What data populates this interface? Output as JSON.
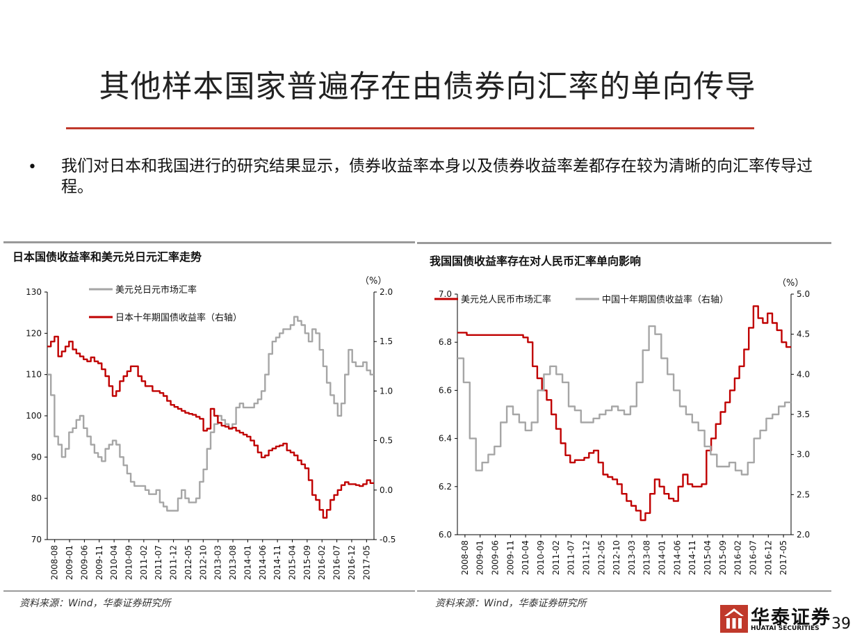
{
  "slide": {
    "title": "其他样本国家普遍存在由债券向汇率的单向传导",
    "bullet": "我们对日本和我国进行的研究结果显示，债券收益率本身以及债券收益率差都存在较为清晰的向汇率传导过程。",
    "bullet_mark": "•",
    "page_number": "39",
    "logo_name": "华泰证券",
    "logo_sub": "HUATAI SECURITIES",
    "accent_color": "#c0392b"
  },
  "charts": {
    "left": {
      "title": "日本国债收益率和美元兑日元汇率走势",
      "source": "资料来源：Wind，华泰证券研究所",
      "right_unit": "（%）"
    },
    "right": {
      "title": "我国国债收益率存在对人民币汇率单向影响",
      "source": "资料来源：Wind，华泰证券研究所",
      "right_unit": "（%）"
    }
  },
  "chart_data": [
    {
      "type": "line",
      "title": "日本国债收益率和美元兑日元汇率走势",
      "x_tick_labels": [
        "2008-08",
        "2009-01",
        "2009-06",
        "2009-11",
        "2010-04",
        "2010-09",
        "2011-02",
        "2011-07",
        "2011-12",
        "2012-05",
        "2012-10",
        "2013-03",
        "2013-08",
        "2014-01",
        "2014-06",
        "2014-11",
        "2015-04",
        "2015-09",
        "2016-02",
        "2016-07",
        "2016-12",
        "2017-05"
      ],
      "y_left": {
        "min": 70,
        "max": 130,
        "ticks": [
          70,
          80,
          90,
          100,
          110,
          120,
          130
        ]
      },
      "y_right": {
        "min": -0.5,
        "max": 2.0,
        "ticks": [
          "-0.5",
          "0.0",
          "0.5",
          "1.0",
          "1.5",
          "2.0"
        ],
        "label": "（%）"
      },
      "legend_placement": "top-left",
      "series": [
        {
          "name": "美元兑日元市场汇率",
          "axis": "left",
          "color": "#a6a6a6",
          "values": [
            110,
            105,
            95,
            93,
            90,
            92,
            96,
            97,
            99,
            100,
            97,
            95,
            93,
            91,
            90,
            89,
            92,
            93,
            94,
            93,
            90,
            88,
            86,
            84,
            83,
            83,
            83,
            82,
            81,
            81,
            82,
            79,
            78,
            77,
            77,
            77,
            80,
            82,
            80,
            79,
            79,
            80,
            84,
            87,
            92,
            96,
            98,
            100,
            99,
            98,
            97,
            98,
            102,
            103,
            102,
            102,
            102,
            103,
            104,
            106,
            110,
            115,
            118,
            119,
            120,
            121,
            121,
            122,
            124,
            123,
            122,
            120,
            118,
            121,
            120,
            116,
            112,
            108,
            105,
            103,
            100,
            103,
            110,
            116,
            113,
            112,
            112,
            113,
            111,
            110
          ]
        },
        {
          "name": "日本十年期国债收益率（右轴）",
          "axis": "right",
          "color": "#c00000",
          "values": [
            1.45,
            1.5,
            1.55,
            1.35,
            1.4,
            1.45,
            1.5,
            1.42,
            1.38,
            1.35,
            1.32,
            1.3,
            1.34,
            1.3,
            1.28,
            1.22,
            1.15,
            1.05,
            0.95,
            1.0,
            1.1,
            1.15,
            1.2,
            1.25,
            1.25,
            1.15,
            1.1,
            1.05,
            1.05,
            1.0,
            1.0,
            0.98,
            0.95,
            0.9,
            0.86,
            0.84,
            0.82,
            0.8,
            0.78,
            0.77,
            0.76,
            0.74,
            0.72,
            0.6,
            0.62,
            0.82,
            0.75,
            0.68,
            0.65,
            0.64,
            0.62,
            0.63,
            0.6,
            0.58,
            0.56,
            0.54,
            0.5,
            0.45,
            0.38,
            0.33,
            0.35,
            0.4,
            0.42,
            0.44,
            0.45,
            0.47,
            0.4,
            0.38,
            0.35,
            0.3,
            0.26,
            0.22,
            0.1,
            -0.05,
            -0.1,
            -0.2,
            -0.28,
            -0.2,
            -0.1,
            -0.05,
            0.0,
            0.05,
            0.08,
            0.06,
            0.06,
            0.05,
            0.04,
            0.06,
            0.1,
            0.07
          ]
        }
      ]
    },
    {
      "type": "line",
      "title": "我国国债收益率存在对人民币汇率单向影响",
      "x_tick_labels": [
        "2008-08",
        "2009-01",
        "2009-06",
        "2009-11",
        "2010-04",
        "2010-09",
        "2011-02",
        "2011-07",
        "2011-12",
        "2012-05",
        "2012-10",
        "2013-03",
        "2013-08",
        "2014-01",
        "2014-06",
        "2014-11",
        "2015-04",
        "2015-09",
        "2016-02",
        "2016-07",
        "2016-12",
        "2017-05"
      ],
      "y_left": {
        "min": 6.0,
        "max": 7.0,
        "ticks": [
          "6.0",
          "6.2",
          "6.4",
          "6.6",
          "6.8",
          "7.0"
        ]
      },
      "y_right": {
        "min": 2.0,
        "max": 5.0,
        "ticks": [
          "2.0",
          "2.5",
          "3.0",
          "3.5",
          "4.0",
          "4.5",
          "5.0"
        ],
        "label": "（%）"
      },
      "legend_placement": "top",
      "series": [
        {
          "name": "美元兑人民币市场汇率",
          "axis": "left",
          "color": "#c00000",
          "values": [
            6.84,
            6.84,
            6.83,
            6.83,
            6.83,
            6.83,
            6.83,
            6.83,
            6.83,
            6.83,
            6.83,
            6.83,
            6.83,
            6.83,
            6.82,
            6.8,
            6.7,
            6.65,
            6.6,
            6.56,
            6.5,
            6.44,
            6.38,
            6.33,
            6.3,
            6.31,
            6.31,
            6.32,
            6.34,
            6.35,
            6.3,
            6.25,
            6.24,
            6.23,
            6.21,
            6.17,
            6.14,
            6.12,
            6.1,
            6.06,
            6.09,
            6.17,
            6.23,
            6.2,
            6.17,
            6.15,
            6.14,
            6.2,
            6.25,
            6.21,
            6.2,
            6.2,
            6.21,
            6.35,
            6.4,
            6.46,
            6.51,
            6.55,
            6.6,
            6.65,
            6.7,
            6.77,
            6.86,
            6.95,
            6.9,
            6.88,
            6.92,
            6.88,
            6.85,
            6.8,
            6.78
          ]
        },
        {
          "name": "中国十年期国债收益率（右轴）",
          "axis": "right",
          "color": "#a6a6a6",
          "values": [
            4.2,
            3.9,
            3.2,
            2.8,
            2.9,
            3.0,
            3.1,
            3.4,
            3.6,
            3.5,
            3.4,
            3.3,
            3.4,
            3.8,
            4.0,
            4.1,
            4.0,
            3.9,
            3.6,
            3.55,
            3.4,
            3.4,
            3.45,
            3.5,
            3.55,
            3.6,
            3.55,
            3.5,
            3.6,
            3.9,
            4.3,
            4.6,
            4.5,
            4.2,
            4.0,
            3.8,
            3.6,
            3.5,
            3.4,
            3.3,
            3.1,
            3.0,
            2.85,
            2.85,
            2.9,
            2.8,
            2.75,
            2.9,
            3.2,
            3.3,
            3.45,
            3.5,
            3.6,
            3.65
          ]
        }
      ]
    }
  ]
}
